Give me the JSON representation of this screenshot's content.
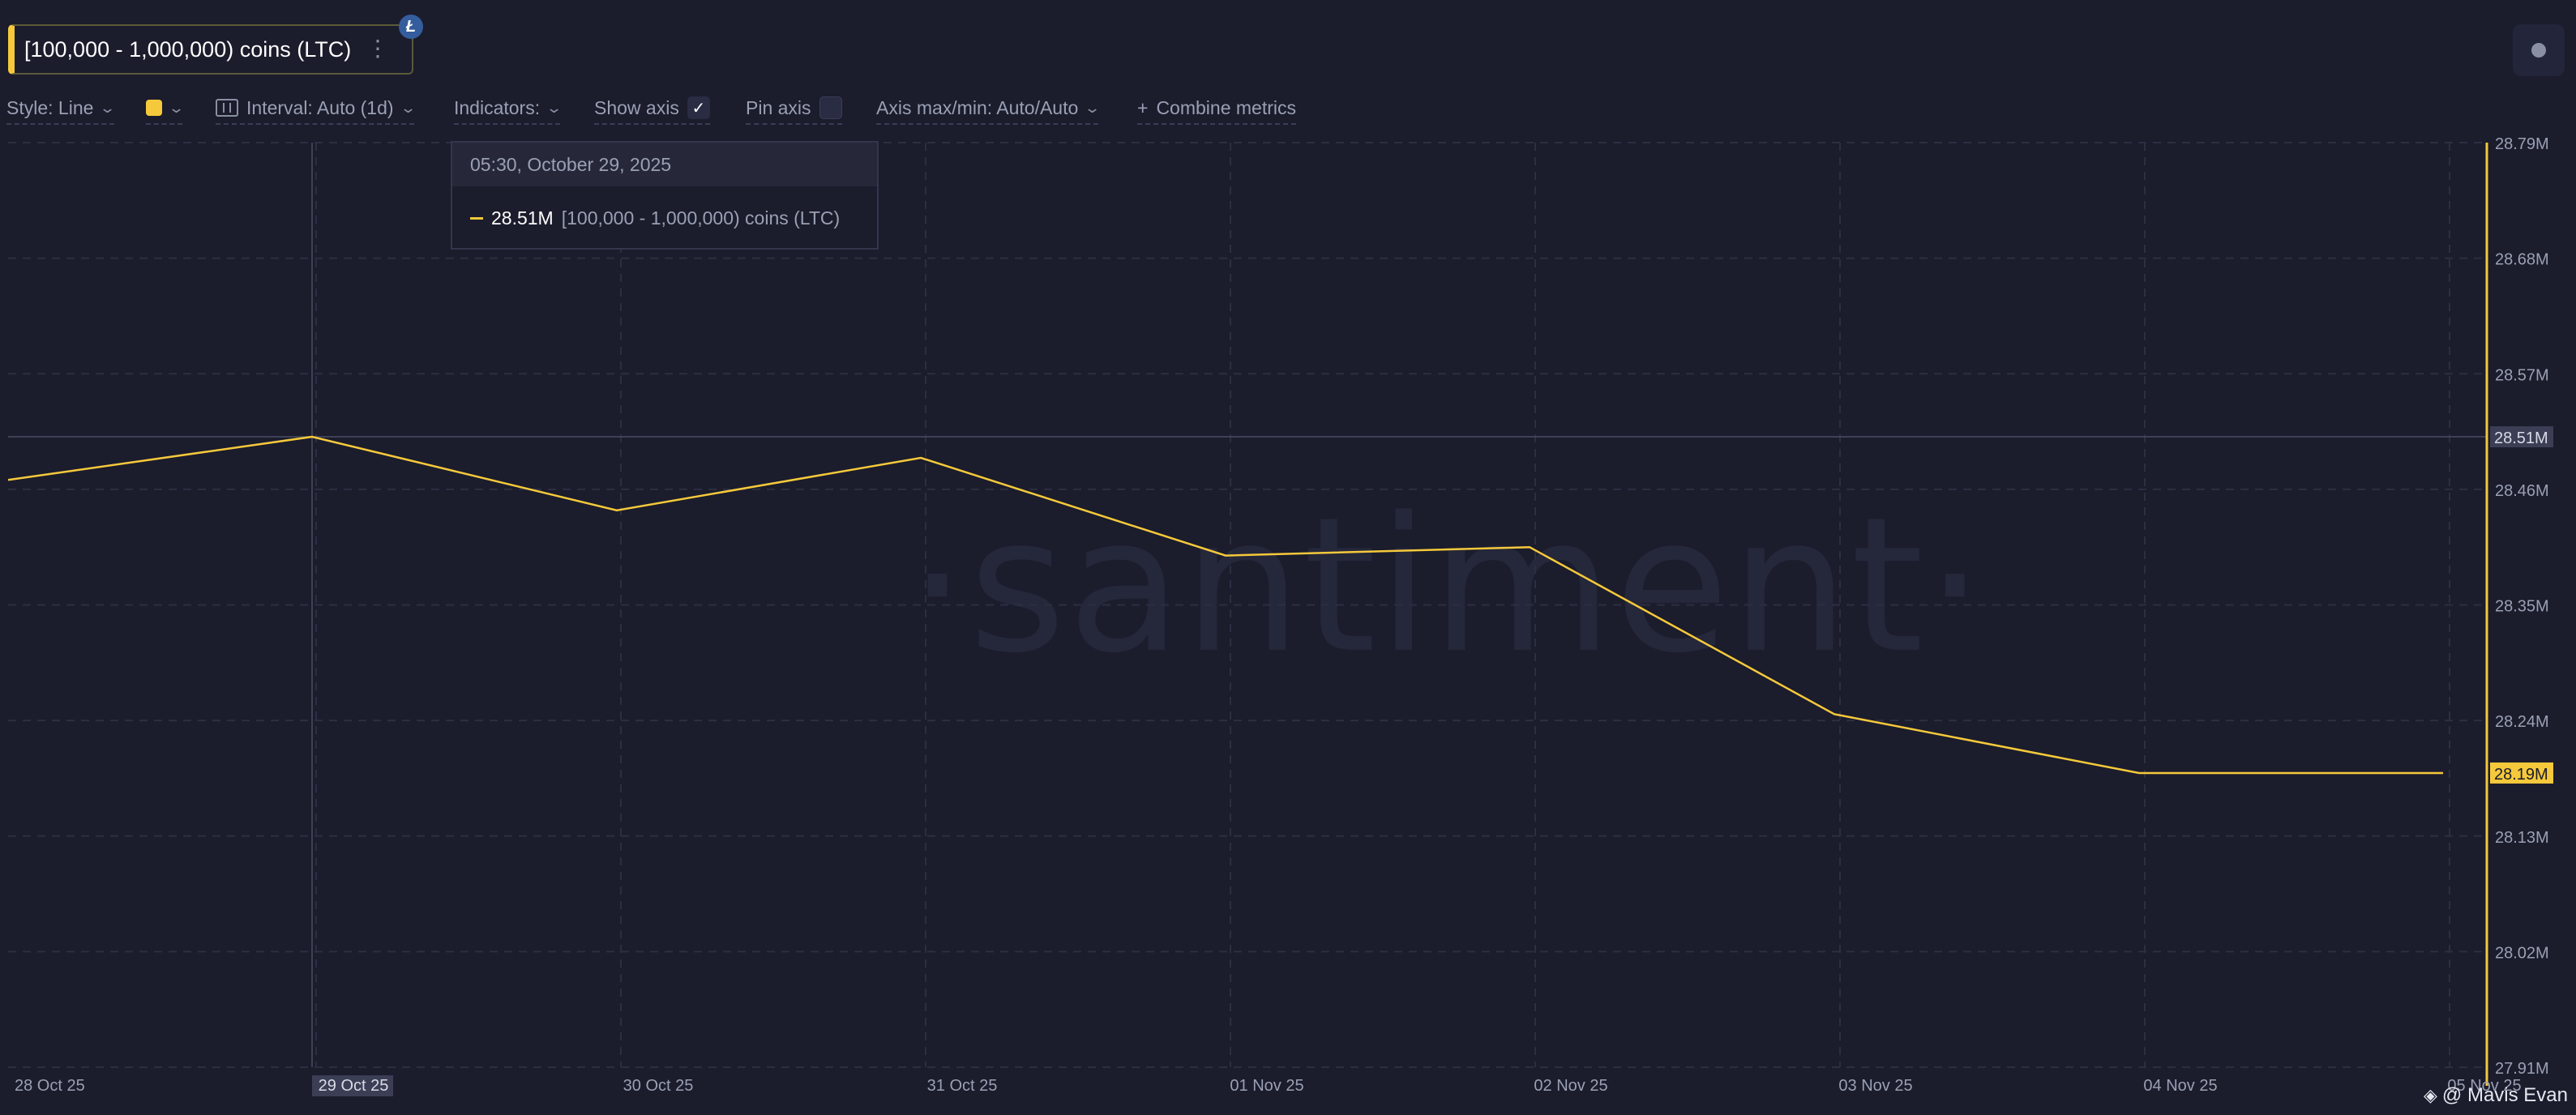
{
  "metric": {
    "label": "[100,000 - 1,000,000) coins (LTC)",
    "coin_badge": "Ł",
    "more_icon": "⋮"
  },
  "toolbar": {
    "style": "Style: Line",
    "color": "#f5c93b",
    "interval": "Interval: Auto (1d)",
    "indicators": "Indicators:",
    "show_axis": "Show axis",
    "show_axis_checked": true,
    "pin_axis": "Pin axis",
    "pin_axis_checked": false,
    "axis_maxmin": "Axis max/min: Auto/Auto",
    "combine_plus": "+",
    "combine": "Combine metrics"
  },
  "tooltip": {
    "datetime": "05:30, October 29, 2025",
    "value": "28.51M",
    "name": "[100,000  - 1,000,000) coins (LTC)"
  },
  "watermark": "·santiment·",
  "credit": "@ Mavis Evan",
  "colors": {
    "background": "#1b1c2c",
    "series": "#f5c93b",
    "grid": "#2c2e42",
    "axis_text": "#9aa0b4"
  },
  "chart_data": {
    "type": "line",
    "x": [
      "28 Oct 25",
      "29 Oct 25",
      "30 Oct 25",
      "31 Oct 25",
      "01 Nov 25",
      "02 Nov 25",
      "03 Nov 25",
      "04 Nov 25",
      "05 Nov 25"
    ],
    "series": [
      {
        "name": "[100,000 - 1,000,000) coins (LTC)",
        "values": [
          28.469,
          28.51,
          28.44,
          28.49,
          28.397,
          28.405,
          28.246,
          28.19,
          28.19
        ]
      }
    ],
    "y_ticks": [
      "27.91M",
      "28.02M",
      "28.13M",
      "28.19M",
      "28.24M",
      "28.35M",
      "28.46M",
      "28.51M",
      "28.57M",
      "28.68M",
      "28.79M"
    ],
    "y_tick_values": [
      27.91,
      28.02,
      28.13,
      28.24,
      28.35,
      28.46,
      28.57,
      28.68,
      28.79
    ],
    "ylim": [
      27.91,
      28.79
    ],
    "y_unit": "M",
    "crosshair": {
      "x": "29 Oct 25",
      "y": 28.51,
      "y_label": "28.51M"
    },
    "last_value_label": "28.19M",
    "grid": true,
    "axis_position": "right"
  }
}
